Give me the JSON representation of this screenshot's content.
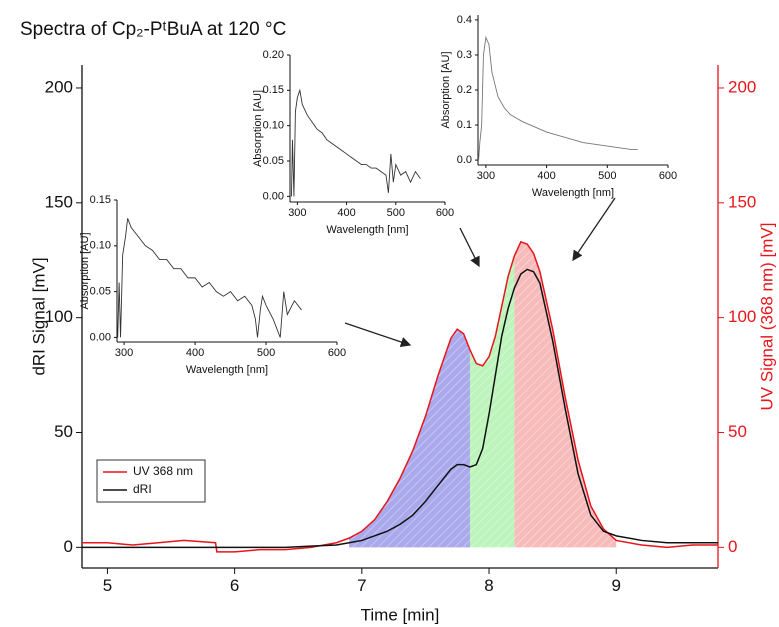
{
  "chart_data": [
    {
      "type": "line",
      "title": "Spectra of Cp₂-PᵗBuA at 120 °C",
      "x_label": "Time [min]",
      "y_label": "dRI Signal [mV]",
      "y2_label": "UV Signal (368 nm) [mV]",
      "xlim": [
        4.8,
        9.8
      ],
      "xticks": [
        5,
        6,
        7,
        8,
        9
      ],
      "ylim": [
        -9,
        210
      ],
      "yticks": [
        0,
        50,
        100,
        150,
        200
      ],
      "y2lim": [
        -9,
        210
      ],
      "y2ticks": [
        0,
        50,
        100,
        150,
        200
      ],
      "y2color": "#e8151b",
      "legend": "left",
      "x": [
        4.8,
        5.0,
        5.2,
        5.4,
        5.6,
        5.85,
        5.86,
        6.0,
        6.2,
        6.4,
        6.6,
        6.8,
        6.9,
        7.0,
        7.1,
        7.2,
        7.3,
        7.4,
        7.5,
        7.6,
        7.7,
        7.75,
        7.8,
        7.85,
        7.9,
        7.95,
        8.0,
        8.05,
        8.1,
        8.15,
        8.2,
        8.25,
        8.3,
        8.35,
        8.4,
        8.5,
        8.6,
        8.7,
        8.8,
        8.9,
        9.0,
        9.2,
        9.4,
        9.6,
        9.8
      ],
      "series": [
        {
          "name": "UV 368 nm",
          "color": "#e8151b",
          "axis": "y2",
          "values": [
            2,
            2,
            1,
            2,
            3,
            2,
            -2,
            -2,
            -1,
            -1,
            0,
            2,
            4,
            7,
            12,
            20,
            30,
            42,
            57,
            75,
            91,
            95,
            93,
            86,
            80,
            79,
            83,
            92,
            105,
            118,
            127,
            133,
            132,
            128,
            120,
            95,
            65,
            38,
            18,
            8,
            3,
            1,
            0,
            1,
            1
          ]
        },
        {
          "name": "dRI",
          "color": "#111111",
          "values": [
            0,
            0,
            0,
            0,
            0,
            0,
            0,
            0,
            0,
            0,
            0.5,
            1,
            2,
            3,
            5,
            7,
            10,
            14,
            20,
            27,
            34,
            36,
            36,
            35,
            36,
            43,
            58,
            75,
            92,
            104,
            113,
            119,
            121,
            120,
            115,
            90,
            60,
            32,
            14,
            7,
            5,
            3,
            2,
            2,
            2
          ]
        }
      ],
      "regions": [
        {
          "start": 6.9,
          "end": 7.85,
          "color": "#8c8ce6"
        },
        {
          "start": 7.85,
          "end": 8.2,
          "color": "#a6f0a6"
        },
        {
          "start": 8.2,
          "end": 9.0,
          "color": "#f4a4a4"
        }
      ]
    },
    {
      "type": "line",
      "x_label": "Wavelength [nm]",
      "y_label": "Absorption [AU]",
      "xlim": [
        290,
        600
      ],
      "xticks": [
        300,
        400,
        500,
        600
      ],
      "ylim": [
        -0.005,
        0.15
      ],
      "yticks": [
        {
          "value": 0,
          "label": "0.00"
        },
        0.05,
        {
          "value": 0.1,
          "label": "0.10"
        },
        0.15
      ],
      "x": [
        291,
        293,
        295,
        298,
        302,
        305,
        310,
        320,
        330,
        340,
        350,
        360,
        370,
        380,
        390,
        400,
        410,
        420,
        430,
        440,
        450,
        460,
        470,
        480,
        485,
        488,
        492,
        495,
        500,
        510,
        520,
        525,
        530,
        540,
        550
      ],
      "series": [
        {
          "color": "#333333",
          "values": [
            0.0,
            0.06,
            0.0,
            0.09,
            0.11,
            0.13,
            0.12,
            0.11,
            0.1,
            0.095,
            0.085,
            0.085,
            0.075,
            0.075,
            0.065,
            0.065,
            0.055,
            0.06,
            0.05,
            0.045,
            0.05,
            0.04,
            0.045,
            0.035,
            0.02,
            0.0,
            0.03,
            0.045,
            0.035,
            0.02,
            0.0,
            0.05,
            0.025,
            0.04,
            0.03
          ]
        }
      ]
    },
    {
      "type": "line",
      "x_label": "Wavelength [nm]",
      "y_label": "Absorption [AU]",
      "xlim": [
        285,
        600
      ],
      "xticks": [
        300,
        400,
        500,
        600
      ],
      "ylim": [
        -0.008,
        0.2
      ],
      "yticks": [
        {
          "value": 0,
          "label": "0.00"
        },
        0.05,
        {
          "value": 0.1,
          "label": "0.10"
        },
        0.15,
        {
          "value": 0.2,
          "label": "0.20"
        }
      ],
      "x": [
        288,
        290,
        293,
        296,
        300,
        305,
        310,
        320,
        330,
        340,
        350,
        360,
        370,
        380,
        390,
        400,
        410,
        420,
        430,
        440,
        450,
        460,
        470,
        480,
        485,
        490,
        495,
        500,
        510,
        520,
        530,
        540,
        550
      ],
      "series": [
        {
          "color": "#333333",
          "values": [
            0.0,
            0.08,
            0.0,
            0.12,
            0.14,
            0.15,
            0.13,
            0.115,
            0.105,
            0.095,
            0.09,
            0.08,
            0.075,
            0.07,
            0.065,
            0.06,
            0.055,
            0.05,
            0.045,
            0.045,
            0.04,
            0.04,
            0.035,
            0.03,
            0.005,
            0.06,
            0.02,
            0.045,
            0.03,
            0.035,
            0.02,
            0.035,
            0.025
          ]
        }
      ]
    },
    {
      "type": "line",
      "x_label": "Wavelength [nm]",
      "y_label": "Absorption [AU]",
      "xlim": [
        287,
        600
      ],
      "xticks": [
        300,
        400,
        500,
        600
      ],
      "ylim": [
        -0.014,
        0.414
      ],
      "yticks": [
        {
          "value": 0,
          "label": "0.0"
        },
        0.1,
        0.2,
        0.3,
        0.4
      ],
      "x": [
        288,
        290,
        293,
        296,
        300,
        305,
        310,
        320,
        330,
        340,
        350,
        360,
        380,
        400,
        420,
        440,
        460,
        480,
        500,
        520,
        540,
        550
      ],
      "series": [
        {
          "color": "#777777",
          "values": [
            0.0,
            0.05,
            0.1,
            0.3,
            0.35,
            0.33,
            0.25,
            0.18,
            0.15,
            0.13,
            0.12,
            0.11,
            0.095,
            0.08,
            0.07,
            0.06,
            0.05,
            0.045,
            0.04,
            0.035,
            0.03,
            0.03
          ]
        }
      ]
    }
  ]
}
